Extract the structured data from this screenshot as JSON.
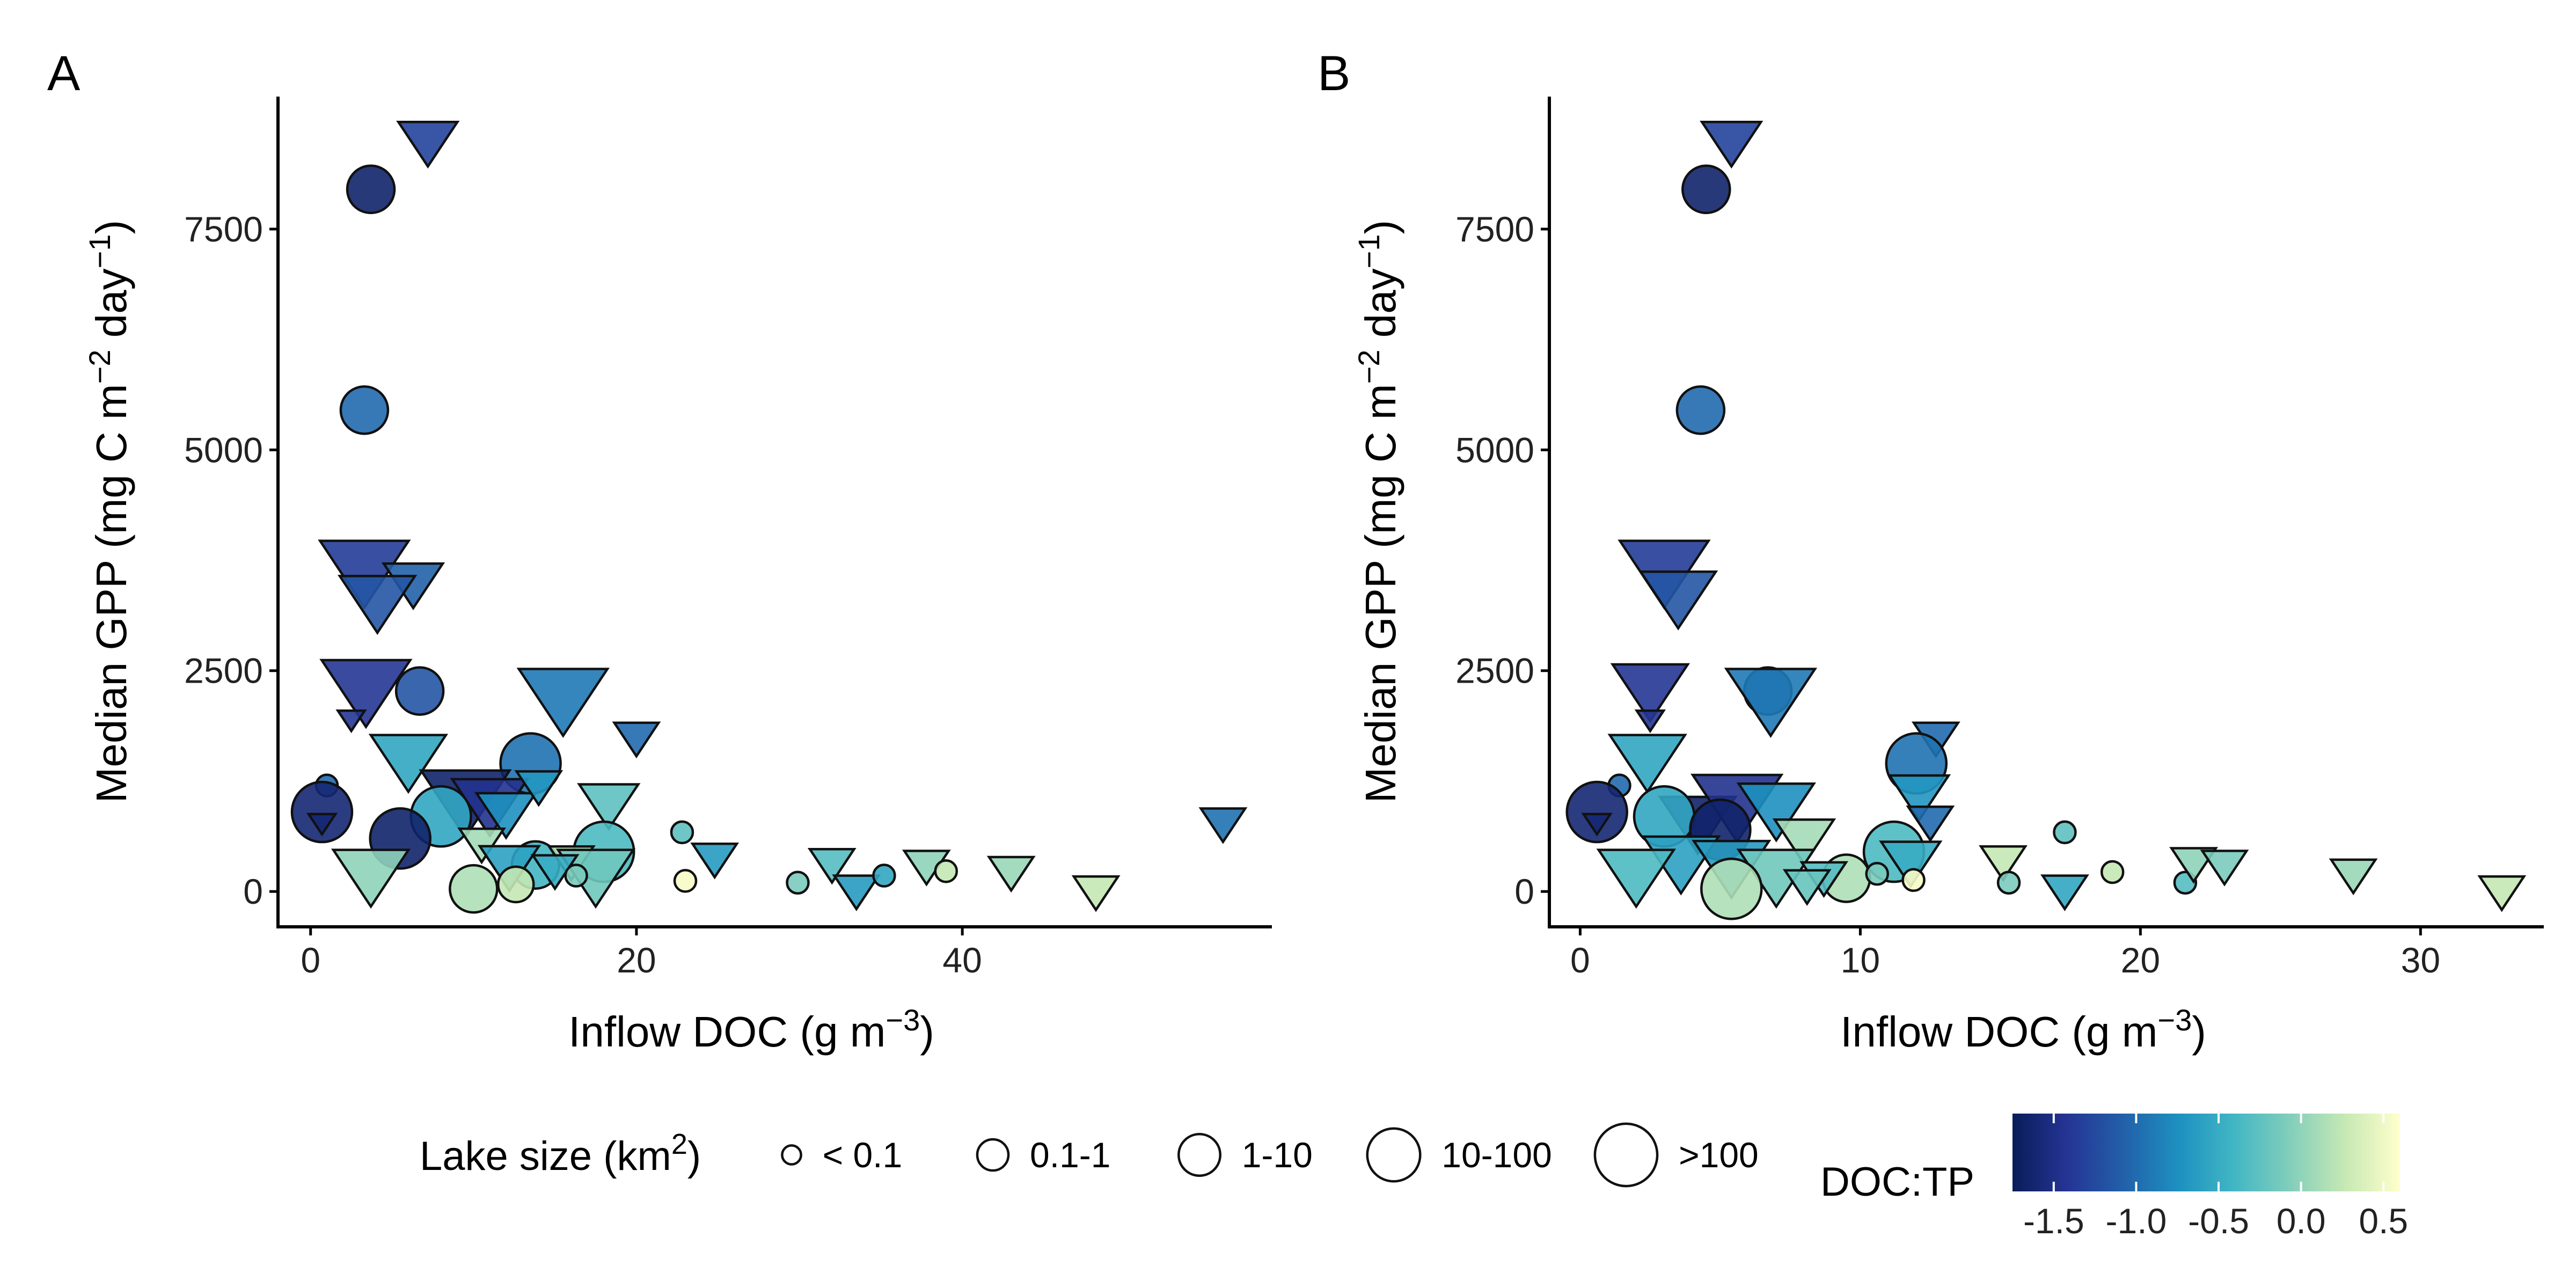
{
  "chart_data": [
    {
      "type": "scatter",
      "panel": "A",
      "xlabel": "Inflow DOC (g m",
      "xlabel_sup": "−3",
      "xlabel_end": ")",
      "ylabel": "Median GPP (mg C m",
      "ylabel_sup1": "−2",
      "ylabel_mid": " day",
      "ylabel_sup2": "−1",
      "ylabel_end": ")",
      "xlim": [
        -2,
        59
      ],
      "ylim": [
        -400,
        9000
      ],
      "xticks": [
        0,
        20,
        40
      ],
      "yticks": [
        0,
        2500,
        5000,
        7500
      ],
      "points": [
        {
          "x": 7.2,
          "y": 8500,
          "shape": "triangle",
          "size": 2,
          "ratio": -1.3
        },
        {
          "x": 3.7,
          "y": 7950,
          "shape": "circle",
          "size": 2,
          "ratio": -1.65
        },
        {
          "x": 3.3,
          "y": 5450,
          "shape": "circle",
          "size": 2,
          "ratio": -1.0
        },
        {
          "x": 3.3,
          "y": 3650,
          "shape": "triangle",
          "size": 4,
          "ratio": -1.35
        },
        {
          "x": 6.3,
          "y": 3500,
          "shape": "triangle",
          "size": 2,
          "ratio": -1.05
        },
        {
          "x": 4.1,
          "y": 3300,
          "shape": "triangle",
          "size": 3,
          "ratio": -1.15
        },
        {
          "x": 3.4,
          "y": 2300,
          "shape": "triangle",
          "size": 4,
          "ratio": -1.4
        },
        {
          "x": 6.7,
          "y": 2270,
          "shape": "circle",
          "size": 2,
          "ratio": -1.15
        },
        {
          "x": 2.5,
          "y": 1950,
          "shape": "triangle",
          "size": 0,
          "ratio": -1.4
        },
        {
          "x": 15.5,
          "y": 2200,
          "shape": "triangle",
          "size": 4,
          "ratio": -0.9
        },
        {
          "x": 20.0,
          "y": 1750,
          "shape": "triangle",
          "size": 1,
          "ratio": -1.0
        },
        {
          "x": 6.0,
          "y": 1500,
          "shape": "triangle",
          "size": 3,
          "ratio": -0.55
        },
        {
          "x": 13.5,
          "y": 1450,
          "shape": "circle",
          "size": 3,
          "ratio": -0.95
        },
        {
          "x": 1.0,
          "y": 1200,
          "shape": "circle",
          "size": 0,
          "ratio": -1.0
        },
        {
          "x": 0.7,
          "y": 900,
          "shape": "circle",
          "size": 3,
          "ratio": -1.6
        },
        {
          "x": 0.7,
          "y": 780,
          "shape": "triangle",
          "size": 0,
          "ratio": -1.6
        },
        {
          "x": 9.5,
          "y": 1050,
          "shape": "triangle",
          "size": 4,
          "ratio": -1.65
        },
        {
          "x": 11.0,
          "y": 1000,
          "shape": "triangle",
          "size": 3,
          "ratio": -1.45
        },
        {
          "x": 12.0,
          "y": 900,
          "shape": "triangle",
          "size": 2,
          "ratio": -0.75
        },
        {
          "x": 14.0,
          "y": 1200,
          "shape": "triangle",
          "size": 1,
          "ratio": -0.7
        },
        {
          "x": 8.0,
          "y": 850,
          "shape": "circle",
          "size": 3,
          "ratio": -0.55
        },
        {
          "x": 18.3,
          "y": 1000,
          "shape": "triangle",
          "size": 2,
          "ratio": -0.25
        },
        {
          "x": 5.5,
          "y": 600,
          "shape": "circle",
          "size": 3,
          "ratio": -1.65
        },
        {
          "x": 22.8,
          "y": 670,
          "shape": "circle",
          "size": 0,
          "ratio": -0.25
        },
        {
          "x": 10.5,
          "y": 550,
          "shape": "triangle",
          "size": 1,
          "ratio": 0.1
        },
        {
          "x": 18.0,
          "y": 450,
          "shape": "circle",
          "size": 3,
          "ratio": -0.35
        },
        {
          "x": 24.8,
          "y": 380,
          "shape": "triangle",
          "size": 1,
          "ratio": -0.65
        },
        {
          "x": 32.0,
          "y": 320,
          "shape": "triangle",
          "size": 1,
          "ratio": -0.3
        },
        {
          "x": 13.8,
          "y": 300,
          "shape": "circle",
          "size": 2,
          "ratio": -0.4
        },
        {
          "x": 16.0,
          "y": 350,
          "shape": "triangle",
          "size": 1,
          "ratio": 0.15
        },
        {
          "x": 12.2,
          "y": 300,
          "shape": "triangle",
          "size": 2,
          "ratio": -0.6
        },
        {
          "x": 3.7,
          "y": 200,
          "shape": "triangle",
          "size": 3,
          "ratio": 0.0
        },
        {
          "x": 17.5,
          "y": 200,
          "shape": "triangle",
          "size": 3,
          "ratio": -0.15
        },
        {
          "x": 10.0,
          "y": 30,
          "shape": "circle",
          "size": 2,
          "ratio": 0.15
        },
        {
          "x": 12.6,
          "y": 80,
          "shape": "circle",
          "size": 1,
          "ratio": 0.25
        },
        {
          "x": 15.0,
          "y": 250,
          "shape": "triangle",
          "size": 1,
          "ratio": -0.5
        },
        {
          "x": 16.3,
          "y": 180,
          "shape": "circle",
          "size": 0,
          "ratio": -0.1
        },
        {
          "x": 23.0,
          "y": 120,
          "shape": "circle",
          "size": 0,
          "ratio": 0.55
        },
        {
          "x": 29.9,
          "y": 100,
          "shape": "circle",
          "size": 0,
          "ratio": -0.1
        },
        {
          "x": 33.5,
          "y": 20,
          "shape": "triangle",
          "size": 1,
          "ratio": -0.65
        },
        {
          "x": 35.2,
          "y": 180,
          "shape": "circle",
          "size": 0,
          "ratio": -0.55
        },
        {
          "x": 37.8,
          "y": 300,
          "shape": "triangle",
          "size": 1,
          "ratio": 0.0
        },
        {
          "x": 39.0,
          "y": 230,
          "shape": "circle",
          "size": 0,
          "ratio": 0.25
        },
        {
          "x": 43.0,
          "y": 230,
          "shape": "triangle",
          "size": 1,
          "ratio": 0.05
        },
        {
          "x": 48.2,
          "y": 10,
          "shape": "triangle",
          "size": 1,
          "ratio": 0.25
        },
        {
          "x": 56.0,
          "y": 780,
          "shape": "triangle",
          "size": 1,
          "ratio": -0.95
        }
      ]
    },
    {
      "type": "scatter",
      "panel": "B",
      "xlabel": "Inflow DOC (g m",
      "xlabel_sup": "−3",
      "xlabel_end": ")",
      "ylabel": "Median GPP (mg C m",
      "ylabel_sup1": "−2",
      "ylabel_mid": " day",
      "ylabel_sup2": "−1",
      "ylabel_end": ")",
      "xlim": [
        -1.1,
        34.4
      ],
      "ylim": [
        -400,
        9000
      ],
      "xticks": [
        0,
        10,
        20,
        30
      ],
      "yticks": [
        0,
        2500,
        5000,
        7500
      ],
      "points": [
        {
          "x": 5.4,
          "y": 8500,
          "shape": "triangle",
          "size": 2,
          "ratio": -1.3
        },
        {
          "x": 4.5,
          "y": 7950,
          "shape": "circle",
          "size": 2,
          "ratio": -1.65
        },
        {
          "x": 4.3,
          "y": 5450,
          "shape": "circle",
          "size": 2,
          "ratio": -1.0
        },
        {
          "x": 3.0,
          "y": 3650,
          "shape": "triangle",
          "size": 4,
          "ratio": -1.35
        },
        {
          "x": 3.5,
          "y": 3350,
          "shape": "triangle",
          "size": 3,
          "ratio": -1.15
        },
        {
          "x": 2.5,
          "y": 2300,
          "shape": "triangle",
          "size": 3,
          "ratio": -1.4
        },
        {
          "x": 2.5,
          "y": 1950,
          "shape": "triangle",
          "size": 0,
          "ratio": -1.4
        },
        {
          "x": 6.7,
          "y": 2270,
          "shape": "circle",
          "size": 2,
          "ratio": -1.15
        },
        {
          "x": 6.8,
          "y": 2200,
          "shape": "triangle",
          "size": 4,
          "ratio": -0.9
        },
        {
          "x": 12.7,
          "y": 1750,
          "shape": "triangle",
          "size": 1,
          "ratio": -1.0
        },
        {
          "x": 2.4,
          "y": 1500,
          "shape": "triangle",
          "size": 3,
          "ratio": -0.55
        },
        {
          "x": 12.0,
          "y": 1450,
          "shape": "circle",
          "size": 3,
          "ratio": -0.95
        },
        {
          "x": 1.4,
          "y": 1200,
          "shape": "circle",
          "size": 0,
          "ratio": -1.0
        },
        {
          "x": 0.6,
          "y": 900,
          "shape": "circle",
          "size": 3,
          "ratio": -1.6
        },
        {
          "x": 0.6,
          "y": 780,
          "shape": "triangle",
          "size": 0,
          "ratio": -1.6
        },
        {
          "x": 4.2,
          "y": 800,
          "shape": "triangle",
          "size": 3,
          "ratio": -1.65
        },
        {
          "x": 5.6,
          "y": 1000,
          "shape": "triangle",
          "size": 4,
          "ratio": -1.45
        },
        {
          "x": 7.0,
          "y": 950,
          "shape": "triangle",
          "size": 3,
          "ratio": -0.75
        },
        {
          "x": 12.1,
          "y": 1100,
          "shape": "triangle",
          "size": 2,
          "ratio": -0.7
        },
        {
          "x": 3.0,
          "y": 850,
          "shape": "circle",
          "size": 3,
          "ratio": -0.55
        },
        {
          "x": 12.5,
          "y": 800,
          "shape": "triangle",
          "size": 1,
          "ratio": -1.0
        },
        {
          "x": 5.0,
          "y": 700,
          "shape": "circle",
          "size": 3,
          "ratio": -1.65
        },
        {
          "x": 8.0,
          "y": 600,
          "shape": "triangle",
          "size": 2,
          "ratio": 0.1
        },
        {
          "x": 11.2,
          "y": 450,
          "shape": "circle",
          "size": 3,
          "ratio": -0.35
        },
        {
          "x": 11.8,
          "y": 350,
          "shape": "triangle",
          "size": 2,
          "ratio": -0.5
        },
        {
          "x": 3.6,
          "y": 350,
          "shape": "triangle",
          "size": 3,
          "ratio": -0.6
        },
        {
          "x": 5.4,
          "y": 300,
          "shape": "triangle",
          "size": 3,
          "ratio": -0.65
        },
        {
          "x": 2.0,
          "y": 200,
          "shape": "triangle",
          "size": 3,
          "ratio": -0.35
        },
        {
          "x": 7.0,
          "y": 200,
          "shape": "triangle",
          "size": 3,
          "ratio": -0.15
        },
        {
          "x": 5.4,
          "y": 30,
          "shape": "circle",
          "size": 3,
          "ratio": 0.15
        },
        {
          "x": 9.5,
          "y": 150,
          "shape": "circle",
          "size": 2,
          "ratio": 0.15
        },
        {
          "x": 8.7,
          "y": 170,
          "shape": "triangle",
          "size": 1,
          "ratio": -0.3
        },
        {
          "x": 8.1,
          "y": 80,
          "shape": "triangle",
          "size": 1,
          "ratio": -0.2
        },
        {
          "x": 10.6,
          "y": 200,
          "shape": "circle",
          "size": 0,
          "ratio": -0.1
        },
        {
          "x": 11.9,
          "y": 130,
          "shape": "circle",
          "size": 0,
          "ratio": 0.55
        },
        {
          "x": 15.1,
          "y": 350,
          "shape": "triangle",
          "size": 1,
          "ratio": 0.25
        },
        {
          "x": 15.3,
          "y": 100,
          "shape": "circle",
          "size": 0,
          "ratio": -0.1
        },
        {
          "x": 17.3,
          "y": 670,
          "shape": "circle",
          "size": 0,
          "ratio": -0.25
        },
        {
          "x": 17.3,
          "y": 20,
          "shape": "triangle",
          "size": 1,
          "ratio": -0.55
        },
        {
          "x": 19.0,
          "y": 220,
          "shape": "circle",
          "size": 0,
          "ratio": 0.25
        },
        {
          "x": 21.6,
          "y": 100,
          "shape": "circle",
          "size": 0,
          "ratio": -0.3
        },
        {
          "x": 21.9,
          "y": 330,
          "shape": "triangle",
          "size": 1,
          "ratio": 0.0
        },
        {
          "x": 23.0,
          "y": 300,
          "shape": "triangle",
          "size": 1,
          "ratio": -0.1
        },
        {
          "x": 27.6,
          "y": 200,
          "shape": "triangle",
          "size": 1,
          "ratio": 0.05
        },
        {
          "x": 32.9,
          "y": 10,
          "shape": "triangle",
          "size": 1,
          "ratio": 0.25
        }
      ]
    }
  ],
  "legend": {
    "size_title": "Lake size (km",
    "size_title_sup": "2",
    "size_title_end": ")",
    "size_labels": [
      "< 0.1",
      "0.1-1",
      "1-10",
      "10-100",
      ">100"
    ],
    "color_title": "DOC:TP",
    "color_ticks": [
      -1.5,
      -1.0,
      -0.5,
      0.0,
      0.5
    ],
    "color_tick_labels": [
      "-1.5",
      "-1.0",
      "-0.5",
      "0.0",
      "0.5"
    ],
    "color_range": [
      -1.75,
      0.6
    ],
    "colors": [
      "#081d58",
      "#253494",
      "#225ea8",
      "#1d91c0",
      "#41b6c4",
      "#7fcdbb",
      "#c7e9b4",
      "#ffffcc"
    ]
  }
}
